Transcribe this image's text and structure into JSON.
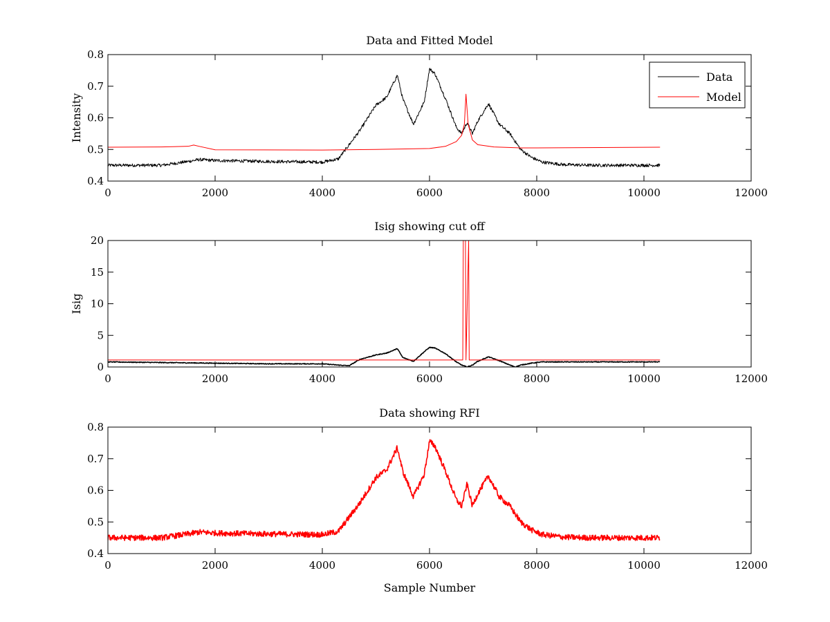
{
  "chart_data": [
    {
      "type": "line",
      "title": "Data and Fitted Model",
      "xlabel": "",
      "ylabel": "Intensity",
      "xlim": [
        0,
        12000
      ],
      "ylim": [
        0.4,
        0.8
      ],
      "xticks": [
        0,
        2000,
        4000,
        6000,
        8000,
        10000,
        12000
      ],
      "yticks": [
        0.4,
        0.5,
        0.6,
        0.7,
        0.8
      ],
      "grid": false,
      "legend": {
        "position": "top-right",
        "entries": [
          "Data",
          "Model"
        ]
      },
      "series": [
        {
          "name": "Data",
          "color": "#000000",
          "noise": 0.005,
          "x": [
            0,
            500,
            1000,
            1500,
            1700,
            2000,
            3000,
            4000,
            4300,
            4500,
            4700,
            5000,
            5200,
            5400,
            5500,
            5700,
            5900,
            6000,
            6100,
            6300,
            6500,
            6600,
            6700,
            6800,
            6900,
            7100,
            7300,
            7500,
            7700,
            7900,
            8100,
            8500,
            9000,
            9500,
            10300
          ],
          "y": [
            0.45,
            0.45,
            0.45,
            0.462,
            0.468,
            0.465,
            0.462,
            0.46,
            0.47,
            0.515,
            0.56,
            0.64,
            0.665,
            0.735,
            0.66,
            0.58,
            0.65,
            0.755,
            0.74,
            0.66,
            0.57,
            0.55,
            0.585,
            0.55,
            0.59,
            0.645,
            0.58,
            0.55,
            0.5,
            0.475,
            0.46,
            0.452,
            0.45,
            0.45,
            0.45
          ]
        },
        {
          "name": "Model",
          "color": "#ff0000",
          "noise": 0,
          "x": [
            0,
            1000,
            1500,
            1600,
            1700,
            2000,
            4000,
            5000,
            6000,
            6300,
            6500,
            6600,
            6650,
            6680,
            6720,
            6800,
            6900,
            7200,
            7700,
            8000,
            10300
          ],
          "y": [
            0.507,
            0.508,
            0.51,
            0.514,
            0.51,
            0.499,
            0.498,
            0.5,
            0.503,
            0.51,
            0.525,
            0.545,
            0.58,
            0.675,
            0.58,
            0.53,
            0.515,
            0.508,
            0.505,
            0.505,
            0.507
          ]
        }
      ]
    },
    {
      "type": "line",
      "title": "Isig showing cut off",
      "xlabel": "",
      "ylabel": "Isig",
      "xlim": [
        0,
        12000
      ],
      "ylim": [
        0,
        20
      ],
      "xticks": [
        0,
        2000,
        4000,
        6000,
        8000,
        10000,
        12000
      ],
      "yticks": [
        0,
        5,
        10,
        15,
        20
      ],
      "grid": false,
      "series": [
        {
          "color": "#000000",
          "noise": 0.06,
          "x": [
            0,
            1000,
            2000,
            3000,
            4000,
            4300,
            4500,
            4700,
            5000,
            5200,
            5400,
            5500,
            5700,
            5900,
            6000,
            6100,
            6300,
            6500,
            6600,
            6700,
            6800,
            6900,
            7100,
            7300,
            7500,
            7600,
            7700,
            7900,
            8100,
            9000,
            10300
          ],
          "y": [
            0.8,
            0.7,
            0.6,
            0.5,
            0.5,
            0.3,
            0.2,
            1.2,
            1.9,
            2.2,
            2.9,
            1.5,
            0.9,
            2.4,
            3.1,
            3.0,
            2.1,
            0.8,
            0.3,
            0.0,
            0.3,
            0.9,
            1.6,
            1.0,
            0.3,
            0.0,
            0.3,
            0.6,
            0.8,
            0.8,
            0.8
          ]
        },
        {
          "color": "#ff0000",
          "noise": 0,
          "x": [
            0,
            6620,
            6630,
            6670,
            6680,
            6730,
            6740,
            10300
          ],
          "y": [
            1.1,
            1.1,
            20,
            20,
            1.1,
            20,
            1.1,
            1.1
          ]
        }
      ]
    },
    {
      "type": "line",
      "title": "Data showing RFI",
      "xlabel": "Sample Number",
      "ylabel": "",
      "xlim": [
        0,
        12000
      ],
      "ylim": [
        0.4,
        0.8
      ],
      "xticks": [
        0,
        2000,
        4000,
        6000,
        8000,
        10000,
        12000
      ],
      "yticks": [
        0.4,
        0.5,
        0.6,
        0.7,
        0.8
      ],
      "grid": false,
      "series": [
        {
          "color": "#ff0000",
          "noise": 0.009,
          "x": [
            0,
            500,
            1000,
            1500,
            1700,
            2000,
            3000,
            4000,
            4300,
            4500,
            4700,
            5000,
            5200,
            5400,
            5500,
            5700,
            5900,
            6000,
            6100,
            6300,
            6500,
            6600,
            6700,
            6800,
            6900,
            7100,
            7300,
            7500,
            7700,
            7900,
            8100,
            8500,
            9000,
            9500,
            10300
          ],
          "y": [
            0.45,
            0.45,
            0.45,
            0.462,
            0.468,
            0.465,
            0.462,
            0.46,
            0.47,
            0.515,
            0.56,
            0.64,
            0.665,
            0.735,
            0.66,
            0.58,
            0.65,
            0.755,
            0.74,
            0.66,
            0.57,
            0.55,
            0.62,
            0.55,
            0.59,
            0.645,
            0.58,
            0.55,
            0.5,
            0.475,
            0.46,
            0.452,
            0.45,
            0.45,
            0.45
          ]
        }
      ]
    }
  ]
}
